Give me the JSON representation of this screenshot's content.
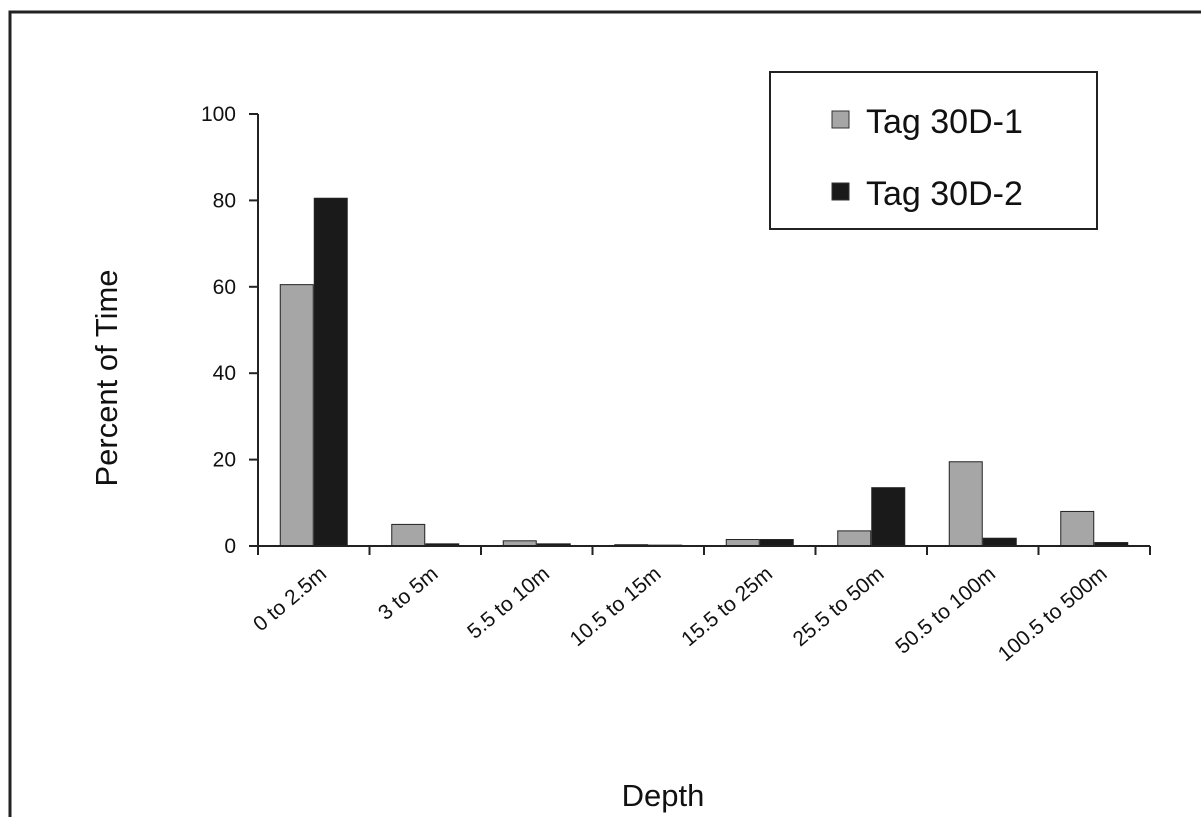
{
  "chart_data": {
    "type": "bar",
    "title": "",
    "xlabel": "Depth",
    "ylabel": "Percent of Time",
    "ylim": [
      0,
      100
    ],
    "yticks": [
      0,
      20,
      40,
      60,
      80,
      100
    ],
    "grid": false,
    "legend_position": "top-right",
    "categories": [
      "0 to 2.5m",
      "3 to 5m",
      "5.5 to 10m",
      "10.5 to 15m",
      "15.5 to 25m",
      "25.5 to 50m",
      "50.5 to 100m",
      "100.5 to 500m"
    ],
    "series": [
      {
        "name": "Tag 30D-1",
        "color": "#a6a6a6",
        "values": [
          60.5,
          5,
          1.2,
          0.3,
          1.5,
          3.5,
          19.5,
          8
        ]
      },
      {
        "name": "Tag 30D-2",
        "color": "#1a1a1a",
        "values": [
          80.5,
          0.5,
          0.5,
          0.2,
          1.5,
          13.5,
          1.8,
          0.8
        ]
      }
    ]
  }
}
